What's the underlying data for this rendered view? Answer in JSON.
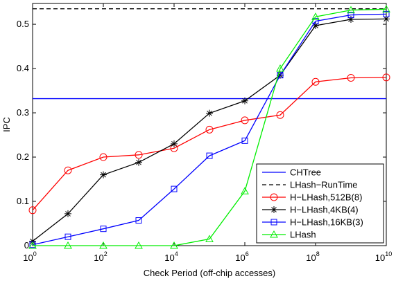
{
  "chart_data": {
    "type": "line",
    "xscale": "log",
    "xlabel": "Check Period (off-chip accesses)",
    "ylabel": "IPC",
    "x": [
      1,
      10,
      100,
      1000,
      10000,
      100000,
      1000000,
      10000000,
      100000000,
      1000000000,
      10000000000
    ],
    "xlim": [
      1,
      10000000000
    ],
    "xticks": [
      {
        "value": 1,
        "label": "10",
        "exponent": "0"
      },
      {
        "value": 100,
        "label": "10",
        "exponent": "2"
      },
      {
        "value": 10000,
        "label": "10",
        "exponent": "4"
      },
      {
        "value": 1000000,
        "label": "10",
        "exponent": "6"
      },
      {
        "value": 100000000,
        "label": "10",
        "exponent": "8"
      },
      {
        "value": 10000000000,
        "label": "10",
        "exponent": "10"
      }
    ],
    "ylim": [
      0,
      0.547
    ],
    "yticks": [
      0,
      0.1,
      0.2,
      0.3,
      0.4,
      0.5
    ],
    "legend": "lower right",
    "series": [
      {
        "name": "CHTree",
        "color": "#0000ff",
        "marker": "none",
        "x": [
          1,
          10000000000
        ],
        "values": [
          0.332,
          0.332
        ]
      },
      {
        "name": "LHash−RunTime",
        "color": "#000000",
        "marker": "none",
        "dash": true,
        "x": [
          1,
          10000000000
        ],
        "values": [
          0.535,
          0.535
        ]
      },
      {
        "name": "H−LHash,512B(8)",
        "color": "#ff0000",
        "marker": "circle",
        "values": [
          0.08,
          0.17,
          0.2,
          0.205,
          0.22,
          0.262,
          0.283,
          0.295,
          0.37,
          0.379,
          0.38
        ]
      },
      {
        "name": "H−LHash,4KB(4)",
        "color": "#000000",
        "marker": "star",
        "values": [
          0.01,
          0.072,
          0.16,
          0.188,
          0.23,
          0.299,
          0.327,
          0.385,
          0.497,
          0.511,
          0.512
        ]
      },
      {
        "name": "H−LHash,16KB(3)",
        "color": "#0000ff",
        "marker": "square",
        "values": [
          0.002,
          0.02,
          0.038,
          0.057,
          0.128,
          0.203,
          0.237,
          0.385,
          0.507,
          0.521,
          0.523
        ]
      },
      {
        "name": "LHash",
        "color": "#00ee00",
        "marker": "triangle",
        "values": [
          0,
          0,
          0,
          0,
          0,
          0.015,
          0.123,
          0.4,
          0.517,
          0.532,
          0.534
        ]
      }
    ]
  }
}
